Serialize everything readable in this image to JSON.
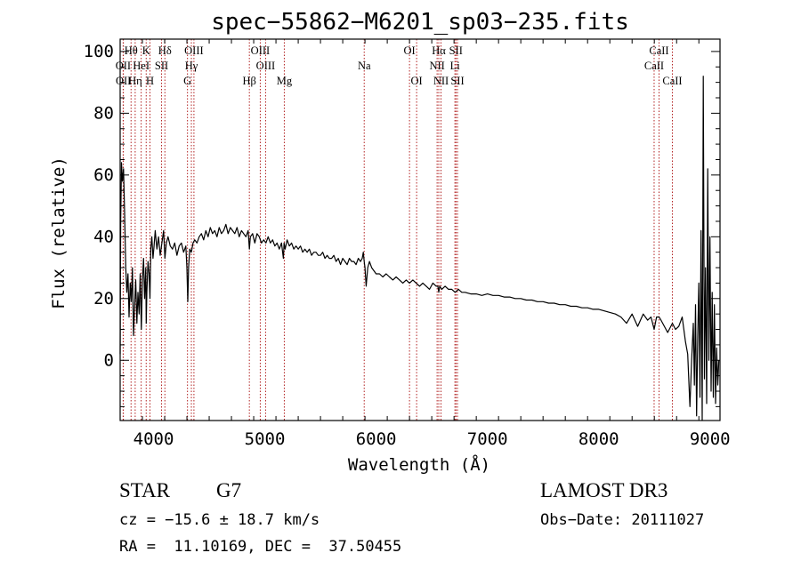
{
  "chart_data": {
    "type": "line",
    "title": "spec−55862−M6201_sp03−235.fits",
    "xlabel": "Wavelength (Å)",
    "ylabel": "Flux (relative)",
    "xlim": [
      3700,
      9090
    ],
    "ylim": [
      -19.5,
      104
    ],
    "xticks": [
      4000,
      5000,
      6000,
      7000,
      8000,
      9000
    ],
    "yticks": [
      0,
      20,
      40,
      60,
      80,
      100
    ],
    "grid": false,
    "line_color": "#000000",
    "marker_color": "#b22222",
    "spectral_lines": [
      {
        "name": "Hθ",
        "wavelength": 3798,
        "row": 1
      },
      {
        "name": "K",
        "wavelength": 3934,
        "row": 1
      },
      {
        "name": "Hδ",
        "wavelength": 4102,
        "row": 1
      },
      {
        "name": "OIII",
        "wavelength": 4363,
        "row": 1
      },
      {
        "name": "OIII",
        "wavelength": 4959,
        "row": 1
      },
      {
        "name": "OI",
        "wavelength": 6300,
        "row": 1
      },
      {
        "name": "Hα",
        "wavelength": 6563,
        "row": 1
      },
      {
        "name": "SII",
        "wavelength": 6717,
        "row": 1
      },
      {
        "name": "CaII",
        "wavelength": 8542,
        "row": 1
      },
      {
        "name": "OII",
        "wavelength": 3727,
        "row": 2
      },
      {
        "name": "HeI",
        "wavelength": 3889,
        "row": 2
      },
      {
        "name": "SII",
        "wavelength": 4072,
        "row": 2
      },
      {
        "name": "Hγ",
        "wavelength": 4340,
        "row": 2
      },
      {
        "name": "OIII",
        "wavelength": 5007,
        "row": 2
      },
      {
        "name": "Na",
        "wavelength": 5893,
        "row": 2
      },
      {
        "name": "NII",
        "wavelength": 6548,
        "row": 2
      },
      {
        "name": "Li",
        "wavelength": 6708,
        "row": 2
      },
      {
        "name": "CaII",
        "wavelength": 8498,
        "row": 2
      },
      {
        "name": "OII",
        "wavelength": 3729,
        "row": 3
      },
      {
        "name": "Hη",
        "wavelength": 3835,
        "row": 3
      },
      {
        "name": "H",
        "wavelength": 3968,
        "row": 3
      },
      {
        "name": "G",
        "wavelength": 4305,
        "row": 3
      },
      {
        "name": "Hβ",
        "wavelength": 4861,
        "row": 3
      },
      {
        "name": "Mg",
        "wavelength": 5175,
        "row": 3
      },
      {
        "name": "OI",
        "wavelength": 6364,
        "row": 3
      },
      {
        "name": "NII",
        "wavelength": 6583,
        "row": 3
      },
      {
        "name": "SII",
        "wavelength": 6731,
        "row": 3
      },
      {
        "name": "CaII",
        "wavelength": 8662,
        "row": 3
      }
    ],
    "series": [
      {
        "name": "flux",
        "x": [
          3700,
          3705,
          3712,
          3720,
          3730,
          3740,
          3750,
          3760,
          3770,
          3780,
          3790,
          3800,
          3810,
          3820,
          3830,
          3840,
          3850,
          3860,
          3870,
          3880,
          3890,
          3900,
          3910,
          3920,
          3930,
          3934,
          3940,
          3950,
          3960,
          3968,
          3975,
          3985,
          3995,
          4005,
          4015,
          4030,
          4045,
          4060,
          4075,
          4090,
          4102,
          4115,
          4130,
          4150,
          4170,
          4190,
          4210,
          4230,
          4250,
          4270,
          4290,
          4300,
          4308,
          4315,
          4325,
          4340,
          4355,
          4370,
          4390,
          4410,
          4430,
          4450,
          4470,
          4490,
          4510,
          4530,
          4550,
          4570,
          4590,
          4610,
          4630,
          4650,
          4670,
          4690,
          4710,
          4730,
          4750,
          4770,
          4790,
          4810,
          4830,
          4850,
          4861,
          4870,
          4890,
          4910,
          4930,
          4950,
          4970,
          4990,
          5010,
          5030,
          5050,
          5070,
          5090,
          5110,
          5130,
          5150,
          5167,
          5173,
          5183,
          5200,
          5220,
          5240,
          5260,
          5280,
          5300,
          5320,
          5340,
          5360,
          5380,
          5400,
          5420,
          5440,
          5460,
          5480,
          5500,
          5520,
          5540,
          5560,
          5580,
          5600,
          5620,
          5640,
          5660,
          5680,
          5700,
          5720,
          5740,
          5760,
          5780,
          5800,
          5820,
          5840,
          5860,
          5875,
          5885,
          5893,
          5900,
          5910,
          5925,
          5940,
          5960,
          5980,
          6000,
          6030,
          6060,
          6090,
          6120,
          6150,
          6180,
          6210,
          6240,
          6270,
          6300,
          6330,
          6360,
          6390,
          6420,
          6450,
          6480,
          6510,
          6540,
          6555,
          6563,
          6572,
          6590,
          6620,
          6650,
          6680,
          6710,
          6740,
          6770,
          6800,
          6850,
          6900,
          6950,
          7000,
          7050,
          7100,
          7150,
          7200,
          7250,
          7300,
          7350,
          7400,
          7450,
          7500,
          7550,
          7600,
          7650,
          7700,
          7750,
          7800,
          7850,
          7900,
          7950,
          8000,
          8050,
          8100,
          8150,
          8200,
          8250,
          8300,
          8350,
          8400,
          8440,
          8470,
          8498,
          8520,
          8542,
          8560,
          8590,
          8620,
          8662,
          8690,
          8720,
          8750,
          8780,
          8800,
          8820,
          8835,
          8850,
          8860,
          8870,
          8880,
          8890,
          8900,
          8910,
          8920,
          8930,
          8940,
          8950,
          8960,
          8970,
          8980,
          8990,
          9000,
          9010,
          9020,
          9030,
          9040,
          9050,
          9060,
          9070,
          9080
        ],
        "y": [
          2,
          45,
          64,
          58,
          62,
          48,
          30,
          22,
          28,
          14,
          25,
          19,
          30,
          8,
          18,
          26,
          12,
          22,
          15,
          28,
          10,
          26,
          33,
          20,
          30,
          12,
          22,
          32,
          28,
          20,
          36,
          40,
          33,
          37,
          42,
          36,
          40,
          34,
          38,
          42,
          33,
          38,
          40,
          37,
          36,
          38,
          34,
          37,
          38,
          35,
          37,
          30,
          19,
          30,
          36,
          35,
          38,
          39,
          38,
          40,
          41,
          39,
          42,
          40,
          43,
          41,
          42,
          40,
          43,
          41,
          42,
          44,
          41,
          43,
          42,
          41,
          43,
          40,
          42,
          41,
          40,
          42,
          36,
          40,
          41,
          38,
          41,
          40,
          38,
          39,
          38,
          40,
          38,
          39,
          37,
          38,
          36,
          38,
          33,
          38,
          36,
          39,
          37,
          38,
          36,
          37,
          36,
          37,
          35,
          36,
          35,
          36,
          34,
          35,
          35,
          34,
          34,
          35,
          33,
          34,
          33,
          33,
          34,
          32,
          33,
          31,
          33,
          32,
          31,
          33,
          32,
          32,
          31,
          33,
          32,
          33,
          35,
          32,
          30,
          24,
          30,
          32,
          30,
          29,
          28,
          28,
          27,
          28,
          27,
          26,
          27,
          26,
          25,
          26,
          25,
          26,
          25,
          24,
          25,
          24,
          23,
          25,
          24,
          24,
          22,
          24,
          23,
          24,
          23,
          23,
          22,
          23,
          22,
          22,
          21.5,
          21.5,
          21,
          21.5,
          21,
          21,
          20.5,
          20.5,
          20,
          20,
          19.5,
          19.5,
          19,
          19,
          18.5,
          18.5,
          18,
          18,
          17.5,
          17.5,
          17,
          17,
          16.5,
          16.5,
          16,
          15.5,
          15,
          14,
          12,
          15,
          11,
          15,
          13,
          14,
          10,
          14,
          14,
          13,
          11,
          9,
          12,
          10,
          11,
          14,
          6,
          2,
          -15,
          0,
          12,
          -8,
          18,
          -18,
          8,
          25,
          -12,
          42,
          -22,
          92,
          -6,
          30,
          -14,
          62,
          0,
          40,
          -10,
          22,
          -12,
          18,
          -14,
          4,
          -8,
          0
        ]
      }
    ]
  },
  "info": {
    "class_label": "STAR",
    "subclass": "G7",
    "survey": "LAMOST DR3",
    "redshift_text": "cz = −15.6 ± 18.7 km/s",
    "obs_date_text": "Obs−Date: 20111027",
    "coords_text": "RA =  11.10169, DEC =  37.50455"
  }
}
